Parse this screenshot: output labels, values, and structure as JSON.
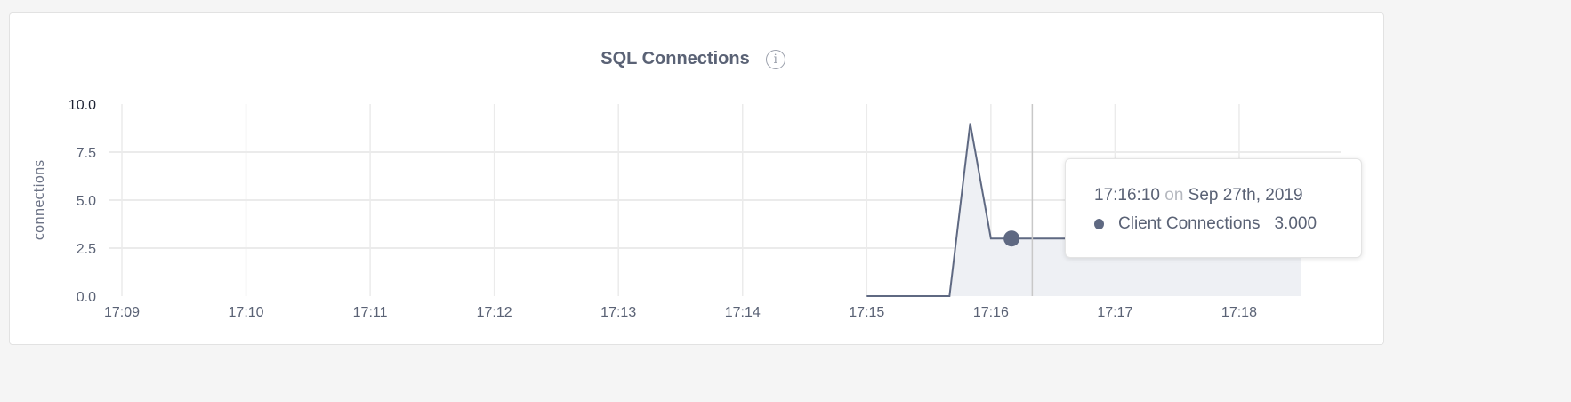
{
  "chart_data": {
    "type": "area",
    "title": "SQL Connections",
    "ylabel": "connections",
    "xlabel": "",
    "ylim": [
      0,
      10
    ],
    "y_ticks": [
      "0.0",
      "2.5",
      "5.0",
      "7.5",
      "10.0"
    ],
    "x_ticks": [
      "17:09",
      "17:10",
      "17:11",
      "17:12",
      "17:13",
      "17:14",
      "17:15",
      "17:16",
      "17:17",
      "17:18"
    ],
    "grid": true,
    "series": [
      {
        "name": "Client Connections",
        "color": "#5f6982",
        "x": [
          "17:15:00",
          "17:15:10",
          "17:15:20",
          "17:15:30",
          "17:15:40",
          "17:15:50",
          "17:16:00",
          "17:16:10",
          "17:16:20",
          "17:16:30",
          "17:16:40",
          "17:16:50",
          "17:17:00",
          "17:17:10",
          "17:17:20",
          "17:17:30",
          "17:17:40",
          "17:17:50",
          "17:18:00",
          "17:18:10",
          "17:18:20",
          "17:18:30"
        ],
        "values": [
          0,
          0,
          0,
          0,
          0,
          9,
          3,
          3,
          3,
          3,
          3,
          3,
          3,
          3,
          3,
          3,
          3,
          3,
          3,
          3,
          3,
          3
        ]
      }
    ],
    "tooltip": {
      "time": "17:16:10",
      "on": "on",
      "date": "Sep 27th, 2019",
      "series": "Client Connections",
      "value": "3.000"
    },
    "info_icon": "info-circle-icon"
  }
}
